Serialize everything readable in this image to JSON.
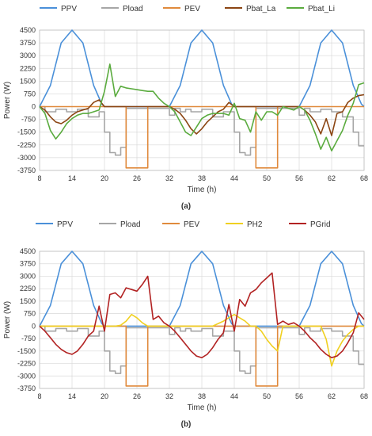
{
  "chart_data": [
    {
      "panel_label": "(a)",
      "type": "line",
      "xlabel": "Time (h)",
      "ylabel": "Power (W)",
      "xlim": [
        8,
        68
      ],
      "ylim": [
        -3750,
        4500
      ],
      "xticks": [
        "8",
        "14",
        "20",
        "26",
        "32",
        "38",
        "44",
        "50",
        "56",
        "62",
        "68"
      ],
      "yticks": [
        "4500",
        "3750",
        "3000",
        "2250",
        "1500",
        "750",
        "0",
        "-750",
        "-1500",
        "-2250",
        "-3000",
        "-3750"
      ],
      "grid": true,
      "legend_position": "top",
      "series": [
        {
          "name": "PPV",
          "color": "#4a90d9",
          "x": [
            8,
            10,
            12,
            14,
            16,
            18,
            19.5,
            20,
            32,
            34,
            36,
            38,
            40,
            42,
            43.5,
            44,
            56,
            58,
            60,
            62,
            64,
            66,
            67.5,
            68
          ],
          "y": [
            0,
            1250,
            3750,
            4500,
            3750,
            1250,
            150,
            0,
            0,
            1250,
            3750,
            4500,
            3750,
            1250,
            150,
            0,
            0,
            1250,
            3750,
            4500,
            3750,
            1250,
            150,
            0
          ]
        },
        {
          "name": "Pload",
          "color": "#a6a6a6",
          "x": [
            8,
            9,
            9,
            11,
            11,
            13,
            13,
            15,
            15,
            17,
            17,
            19,
            19,
            20,
            20,
            21,
            21,
            22,
            22,
            23,
            23,
            24,
            24,
            32,
            32,
            33,
            33,
            34,
            34,
            35,
            35,
            36,
            36,
            38,
            38,
            40,
            40,
            42,
            42,
            44,
            44,
            45,
            45,
            46,
            46,
            47,
            47,
            48,
            48,
            56,
            56,
            57,
            57,
            58,
            58,
            60,
            60,
            62,
            62,
            64,
            64,
            66,
            66,
            67,
            67,
            68
          ],
          "y": [
            0,
            0,
            -300,
            -300,
            -150,
            -150,
            -300,
            -300,
            -150,
            -150,
            -600,
            -600,
            -300,
            -300,
            -1500,
            -1500,
            -2700,
            -2700,
            -2850,
            -2850,
            -2400,
            -2400,
            -100,
            -100,
            -500,
            -500,
            -100,
            -100,
            -300,
            -300,
            -150,
            -150,
            -300,
            -300,
            -150,
            -150,
            -600,
            -600,
            -300,
            -300,
            -1500,
            -1500,
            -2700,
            -2700,
            -2850,
            -2850,
            -2400,
            -2400,
            -100,
            -100,
            -500,
            -500,
            -100,
            -100,
            -300,
            -300,
            -150,
            -150,
            -300,
            -300,
            -600,
            -600,
            -1500,
            -1500,
            -2300,
            -2300
          ]
        },
        {
          "name": "PEV",
          "color": "#e08a3c",
          "x": [
            8,
            24,
            24,
            28,
            28,
            48,
            48,
            52,
            52,
            68
          ],
          "y": [
            0,
            0,
            -3600,
            -3600,
            0,
            0,
            -3600,
            -3600,
            0,
            0
          ]
        },
        {
          "name": "Pbat_La",
          "color": "#8b4513",
          "x": [
            8,
            9,
            10,
            11,
            12,
            13,
            14,
            15,
            16,
            17,
            18,
            19,
            20,
            32,
            33,
            34,
            35,
            36,
            37,
            38,
            39,
            40,
            41,
            42,
            43,
            44,
            56,
            57,
            58,
            59,
            60,
            61,
            62,
            63,
            64,
            65,
            66,
            67,
            68
          ],
          "y": [
            0,
            -200,
            -600,
            -900,
            -1000,
            -800,
            -500,
            -300,
            -200,
            -100,
            250,
            400,
            0,
            0,
            -150,
            -400,
            -800,
            -1300,
            -1600,
            -1300,
            -900,
            -600,
            -300,
            -150,
            250,
            0,
            0,
            -200,
            -500,
            -900,
            -1600,
            -700,
            -1700,
            -400,
            -300,
            250,
            500,
            650,
            700
          ]
        },
        {
          "name": "Pbat_Li",
          "color": "#5aab3e",
          "x": [
            8,
            9,
            10,
            11,
            12,
            13,
            14,
            15,
            16,
            17,
            18,
            19,
            20,
            21,
            22,
            23,
            24,
            25,
            26,
            27,
            28,
            29,
            30,
            31,
            32,
            33,
            34,
            35,
            36,
            37,
            38,
            39,
            40,
            41,
            42,
            43,
            44,
            45,
            46,
            47,
            48,
            49,
            50,
            51,
            52,
            53,
            54,
            55,
            56,
            57,
            58,
            59,
            60,
            61,
            62,
            63,
            64,
            65,
            66,
            67,
            68
          ],
          "y": [
            0,
            -400,
            -1400,
            -1900,
            -1500,
            -1000,
            -700,
            -500,
            -400,
            -400,
            -300,
            -200,
            900,
            2500,
            600,
            1200,
            1100,
            1050,
            1000,
            950,
            900,
            900,
            500,
            200,
            0,
            -300,
            -900,
            -1500,
            -1700,
            -1200,
            -700,
            -500,
            -400,
            -400,
            -400,
            -500,
            200,
            -700,
            -800,
            -1500,
            -300,
            -800,
            -300,
            -300,
            -500,
            0,
            -100,
            -200,
            0,
            -200,
            -800,
            -1600,
            -2500,
            -1800,
            -2600,
            -2000,
            -1400,
            -500,
            200,
            1300,
            1400
          ]
        }
      ]
    },
    {
      "panel_label": "(b)",
      "type": "line",
      "xlabel": "Time (h)",
      "ylabel": "Power (W)",
      "xlim": [
        8,
        68
      ],
      "ylim": [
        -3750,
        4500
      ],
      "xticks": [
        "8",
        "14",
        "20",
        "26",
        "32",
        "38",
        "44",
        "50",
        "56",
        "62",
        "68"
      ],
      "yticks": [
        "4500",
        "3750",
        "3000",
        "2250",
        "1500",
        "750",
        "0",
        "-750",
        "-1500",
        "-2250",
        "-3000",
        "-3750"
      ],
      "grid": true,
      "legend_position": "top",
      "series": [
        {
          "name": "PPV",
          "color": "#4a90d9",
          "x": [
            8,
            10,
            12,
            14,
            16,
            18,
            19.5,
            20,
            32,
            34,
            36,
            38,
            40,
            42,
            43.5,
            44,
            56,
            58,
            60,
            62,
            64,
            66,
            67.5,
            68
          ],
          "y": [
            0,
            1250,
            3750,
            4500,
            3750,
            1250,
            150,
            0,
            0,
            1250,
            3750,
            4500,
            3750,
            1250,
            150,
            0,
            0,
            1250,
            3750,
            4500,
            3750,
            1250,
            150,
            0
          ]
        },
        {
          "name": "Pload",
          "color": "#a6a6a6",
          "x": [
            8,
            9,
            9,
            11,
            11,
            13,
            13,
            15,
            15,
            17,
            17,
            19,
            19,
            20,
            20,
            21,
            21,
            22,
            22,
            23,
            23,
            24,
            24,
            32,
            32,
            33,
            33,
            34,
            34,
            35,
            35,
            36,
            36,
            38,
            38,
            40,
            40,
            42,
            42,
            44,
            44,
            45,
            45,
            46,
            46,
            47,
            47,
            48,
            48,
            56,
            56,
            57,
            57,
            58,
            58,
            60,
            60,
            62,
            62,
            64,
            64,
            66,
            66,
            67,
            67,
            68
          ],
          "y": [
            0,
            0,
            -300,
            -300,
            -150,
            -150,
            -300,
            -300,
            -150,
            -150,
            -600,
            -600,
            -300,
            -300,
            -1500,
            -1500,
            -2700,
            -2700,
            -2850,
            -2850,
            -2400,
            -2400,
            -100,
            -100,
            -500,
            -500,
            -100,
            -100,
            -300,
            -300,
            -150,
            -150,
            -300,
            -300,
            -150,
            -150,
            -600,
            -600,
            -300,
            -300,
            -1500,
            -1500,
            -2700,
            -2700,
            -2850,
            -2850,
            -2400,
            -2400,
            -100,
            -100,
            -500,
            -500,
            -100,
            -100,
            -300,
            -300,
            -150,
            -150,
            -300,
            -300,
            -600,
            -600,
            -1500,
            -1500,
            -2300,
            -2300
          ]
        },
        {
          "name": "PEV",
          "color": "#e08a3c",
          "x": [
            8,
            24,
            24,
            28,
            28,
            48,
            48,
            52,
            52,
            68
          ],
          "y": [
            0,
            0,
            -3600,
            -3600,
            0,
            0,
            -3600,
            -3600,
            0,
            0
          ]
        },
        {
          "name": "PH2",
          "color": "#f0d020",
          "x": [
            8,
            22,
            23,
            24,
            25,
            26,
            27,
            28,
            29,
            40,
            42,
            44,
            45,
            46,
            47,
            48,
            49,
            50,
            51,
            52,
            53,
            60,
            61,
            62,
            63,
            64,
            65,
            66,
            67,
            68
          ],
          "y": [
            0,
            0,
            50,
            300,
            700,
            500,
            200,
            0,
            0,
            0,
            300,
            700,
            500,
            300,
            0,
            0,
            -300,
            -800,
            -1200,
            -1500,
            0,
            0,
            -800,
            -2400,
            -1500,
            -900,
            -500,
            -200,
            0,
            0
          ]
        },
        {
          "name": "PGrid",
          "color": "#b22222",
          "x": [
            8,
            9,
            10,
            11,
            12,
            13,
            14,
            15,
            16,
            17,
            18,
            19,
            20,
            21,
            22,
            23,
            24,
            25,
            26,
            27,
            28,
            29,
            30,
            31,
            32,
            33,
            34,
            35,
            36,
            37,
            38,
            39,
            40,
            41,
            42,
            43,
            44,
            45,
            46,
            47,
            48,
            49,
            50,
            51,
            52,
            53,
            54,
            55,
            56,
            57,
            58,
            59,
            60,
            61,
            62,
            63,
            64,
            65,
            66,
            67,
            68
          ],
          "y": [
            0,
            -300,
            -700,
            -1100,
            -1400,
            -1600,
            -1700,
            -1500,
            -1100,
            -600,
            -300,
            1200,
            -300,
            1900,
            2000,
            1700,
            2300,
            2200,
            2100,
            2500,
            3000,
            400,
            600,
            200,
            0,
            -300,
            -700,
            -1100,
            -1500,
            -1800,
            -1900,
            -1700,
            -1300,
            -800,
            -400,
            1300,
            -300,
            1600,
            1200,
            2000,
            2200,
            2600,
            2900,
            3200,
            100,
            300,
            100,
            200,
            0,
            -300,
            -700,
            -1000,
            -1400,
            -1700,
            -1900,
            -1800,
            -1500,
            -1000,
            -400,
            800,
            400
          ]
        }
      ]
    }
  ]
}
